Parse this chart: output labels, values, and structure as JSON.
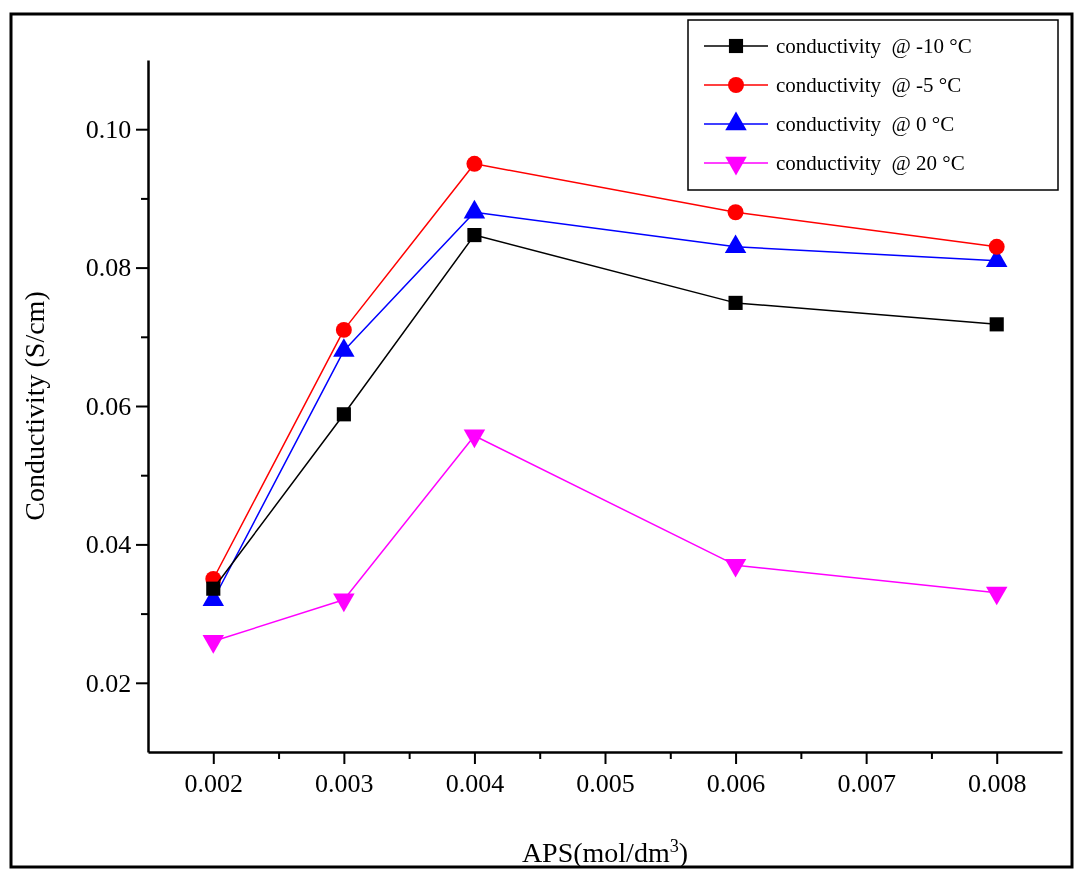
{
  "chart_data": {
    "type": "line",
    "xlabel": "APS(mol/dm$^{3}$)",
    "ylabel": "Conductivity (S/cm)",
    "xlim": [
      0.0015,
      0.0085
    ],
    "xticks": [
      0.002,
      {
        "value": 0.0025,
        "label": null
      },
      0.003,
      {
        "value": 0.0035,
        "label": null
      },
      0.004,
      {
        "value": 0.0045,
        "label": null
      },
      0.005,
      {
        "value": 0.0055,
        "label": null
      },
      0.006,
      {
        "value": 0.0065,
        "label": null
      },
      0.007,
      {
        "value": 0.0075,
        "label": null
      },
      0.008
    ],
    "ylim": [
      0.01,
      0.11
    ],
    "yticks": [
      {
        "value": 0.02,
        "label": "0.02"
      },
      {
        "value": 0.03,
        "label": null
      },
      {
        "value": 0.04,
        "label": "0.04"
      },
      {
        "value": 0.05,
        "label": null
      },
      {
        "value": 0.06,
        "label": "0.06"
      },
      {
        "value": 0.07,
        "label": null
      },
      {
        "value": 0.08,
        "label": "0.08"
      },
      {
        "value": 0.09,
        "label": null
      },
      {
        "value": 0.1,
        "label": "0.10"
      }
    ],
    "grid": false,
    "legend": "top right",
    "line_style": "solid",
    "x": [
      0.002,
      0.003,
      0.004,
      0.006,
      0.008
    ],
    "series": [
      {
        "name": "conductivity  @ -10 °C",
        "color": "#000000",
        "marker": "square",
        "values": [
          0.0336,
          0.0588,
          0.0847,
          0.0749,
          0.0718
        ]
      },
      {
        "name": "conductivity  @ -5 °C",
        "color": "#ff0000",
        "marker": "circle",
        "values": [
          0.035,
          0.071,
          0.095,
          0.088,
          0.083
        ]
      },
      {
        "name": "conductivity  @ 0 °C",
        "color": "#0000ff",
        "marker": "triangle",
        "values": [
          0.032,
          0.068,
          0.088,
          0.083,
          0.081
        ]
      },
      {
        "name": "conductivity  @ 20 °C",
        "color": "#ff00ff",
        "marker": "triangle-down",
        "values": [
          0.026,
          0.032,
          0.0557,
          0.037,
          0.033
        ]
      }
    ]
  }
}
